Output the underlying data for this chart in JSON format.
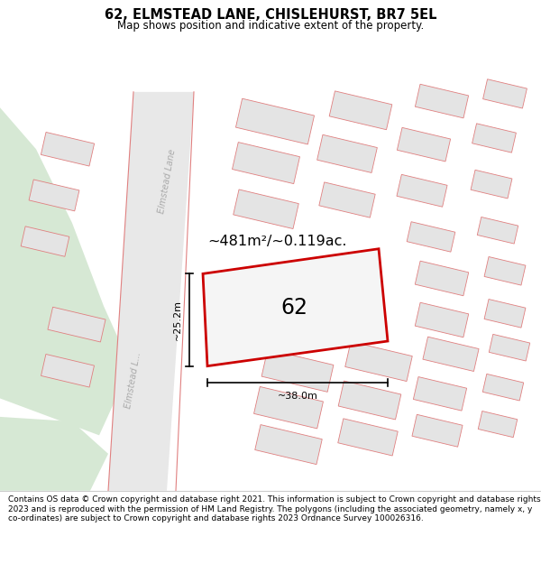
{
  "title": "62, ELMSTEAD LANE, CHISLEHURST, BR7 5EL",
  "subtitle": "Map shows position and indicative extent of the property.",
  "footer": "Contains OS data © Crown copyright and database right 2021. This information is subject to Crown copyright and database rights 2023 and is reproduced with the permission of HM Land Registry. The polygons (including the associated geometry, namely x, y co-ordinates) are subject to Crown copyright and database rights 2023 Ordnance Survey 100026316.",
  "area_label": "~481m²/~0.119ac.",
  "plot_number": "62",
  "width_label": "~38.0m",
  "height_label": "~25.2m",
  "road_label_top": "Elmstead Lane",
  "road_label_bot": "Elmstead L...",
  "bg_color": "#f9f9f9",
  "road_fill": "#e8e8e8",
  "block_fill": "#e4e4e4",
  "block_edge": "#e08080",
  "plot_fill": "#f5f5f5",
  "plot_edge": "#cc0000",
  "green_fill": "#d6e8d4",
  "title_fontsize": 10.5,
  "subtitle_fontsize": 8.5,
  "footer_fontsize": 6.5
}
